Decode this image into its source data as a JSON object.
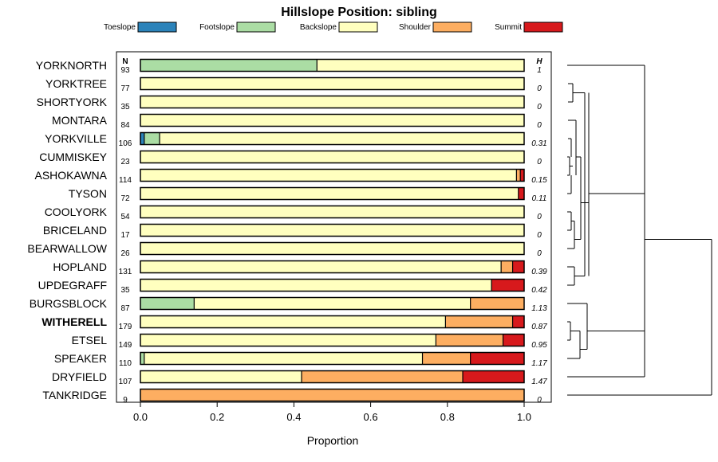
{
  "chart_data": {
    "type": "bar",
    "orientation": "horizontal",
    "stacked": true,
    "title": "Hillslope Position: sibling",
    "xlabel": "Proportion",
    "ylabel": "",
    "xlim": [
      0,
      1
    ],
    "x_ticks": [
      "0.0",
      "0.2",
      "0.4",
      "0.6",
      "0.8",
      "1.0"
    ],
    "n_header": "N",
    "h_header": "H",
    "legend_position": "top",
    "legend": [
      {
        "name": "Toeslope",
        "color": "#2b83ba"
      },
      {
        "name": "Footslope",
        "color": "#abdda4"
      },
      {
        "name": "Backslope",
        "color": "#ffffbf"
      },
      {
        "name": "Shoulder",
        "color": "#fdae61"
      },
      {
        "name": "Summit",
        "color": "#d7191c"
      }
    ],
    "categories": [
      "YORKNORTH",
      "YORKTREE",
      "SHORTYORK",
      "MONTARA",
      "YORKVILLE",
      "CUMMISKEY",
      "ASHOKAWNA",
      "TYSON",
      "COOLYORK",
      "BRICELAND",
      "BEARWALLOW",
      "HOPLAND",
      "UPDEGRAFF",
      "BURGSBLOCK",
      "WITHERELL",
      "ETSEL",
      "SPEAKER",
      "DRYFIELD",
      "TANKRIDGE"
    ],
    "highlight": "WITHERELL",
    "n": [
      "93",
      "77",
      "35",
      "84",
      "106",
      "23",
      "114",
      "72",
      "54",
      "17",
      "26",
      "131",
      "35",
      "87",
      "179",
      "149",
      "110",
      "107",
      "9"
    ],
    "h": [
      "1",
      "0",
      "0",
      "0",
      "0.31",
      "0",
      "0.15",
      "0.11",
      "0",
      "0",
      "0",
      "0.39",
      "0.42",
      "1.13",
      "0.87",
      "0.95",
      "1.17",
      "1.47",
      "0"
    ],
    "series": [
      {
        "name": "Toeslope",
        "values": [
          0,
          0,
          0,
          0,
          0.01,
          0,
          0,
          0,
          0,
          0,
          0,
          0,
          0,
          0,
          0,
          0,
          0,
          0,
          0
        ]
      },
      {
        "name": "Footslope",
        "values": [
          0.46,
          0,
          0,
          0,
          0.04,
          0,
          0,
          0,
          0,
          0,
          0,
          0,
          0,
          0.14,
          0,
          0,
          0.01,
          0,
          0
        ]
      },
      {
        "name": "Backslope",
        "values": [
          0.54,
          1,
          1,
          1,
          0.95,
          1,
          0.98,
          0.985,
          1,
          1,
          1,
          0.94,
          0.915,
          0.72,
          0.795,
          0.77,
          0.725,
          0.42,
          0
        ]
      },
      {
        "name": "Shoulder",
        "values": [
          0,
          0,
          0,
          0,
          0,
          0,
          0.01,
          0,
          0,
          0,
          0,
          0.03,
          0,
          0.14,
          0.175,
          0.175,
          0.125,
          0.42,
          1
        ]
      },
      {
        "name": "Summit",
        "values": [
          0,
          0,
          0,
          0,
          0,
          0,
          0.01,
          0.015,
          0,
          0,
          0,
          0.03,
          0.085,
          0,
          0.03,
          0.055,
          0.14,
          0.16,
          0
        ]
      }
    ]
  }
}
